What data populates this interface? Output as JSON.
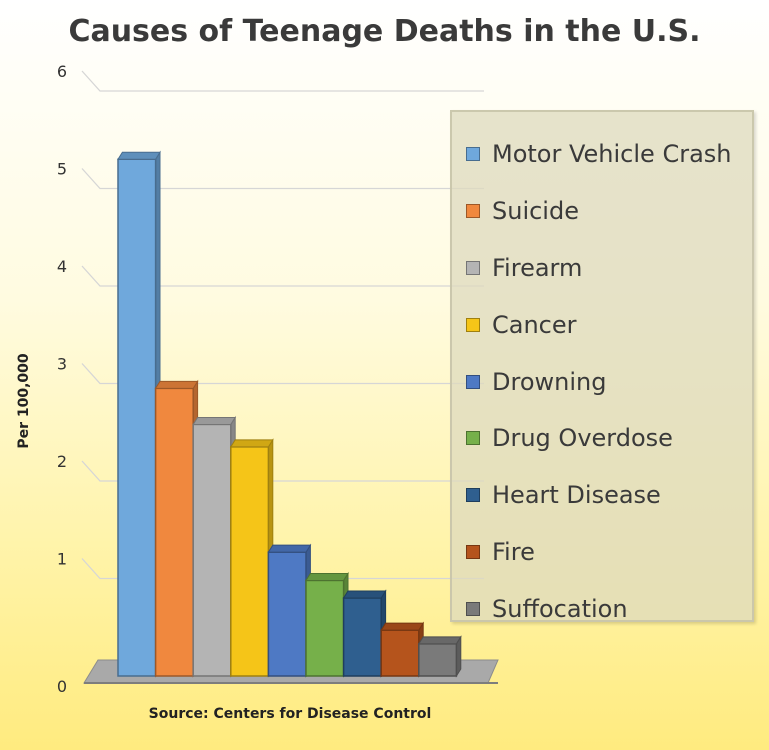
{
  "chart_data": {
    "type": "bar",
    "title": "Causes of Teenage Deaths in the U.S.",
    "xlabel": "Source: Centers for Disease Control",
    "ylabel": "Per 100,000",
    "ylim": [
      0,
      6
    ],
    "yticks": [
      "0",
      "1",
      "2",
      "3",
      "4",
      "5",
      "6"
    ],
    "grid": true,
    "legend_position": "right",
    "series": [
      {
        "name": "Motor Vehicle Crash",
        "value": 5.3,
        "color": "#6fa8dc"
      },
      {
        "name": "Suicide",
        "value": 2.95,
        "color": "#f0883e"
      },
      {
        "name": "Firearm",
        "value": 2.58,
        "color": "#b4b4b4"
      },
      {
        "name": "Cancer",
        "value": 2.35,
        "color": "#f5c518"
      },
      {
        "name": "Drowning",
        "value": 1.27,
        "color": "#4e79c4"
      },
      {
        "name": "Drug Overdose",
        "value": 0.98,
        "color": "#76b04a"
      },
      {
        "name": "Heart Disease",
        "value": 0.8,
        "color": "#2f5f8f"
      },
      {
        "name": "Fire",
        "value": 0.47,
        "color": "#b5541c"
      },
      {
        "name": "Suffocation",
        "value": 0.33,
        "color": "#7a7a7a"
      }
    ]
  }
}
